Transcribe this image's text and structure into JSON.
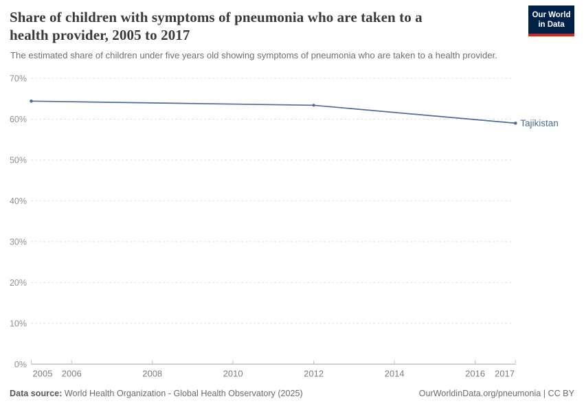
{
  "header": {
    "title_lines": [
      "Share of children with symptoms of pneumonia who are taken to a",
      "health provider, 2005 to 2017"
    ],
    "subtitle": "The estimated share of children under five years old showing symptoms of pneumonia who are taken to a health provider."
  },
  "logo": {
    "line1": "Our World",
    "line2": "in Data",
    "bg_color": "#002147",
    "accent_color": "#cd2a1e"
  },
  "chart_data": {
    "type": "line",
    "title": "Share of children with symptoms of pneumonia who are taken to a health provider, 2005 to 2017",
    "subtitle": "The estimated share of children under five years old showing symptoms of pneumonia who are taken to a health provider.",
    "xlabel": "",
    "ylabel": "",
    "xlim": [
      2005,
      2017
    ],
    "ylim": [
      0,
      70
    ],
    "y_ticks": [
      0,
      10,
      20,
      30,
      40,
      50,
      60,
      70
    ],
    "y_tick_suffix": "%",
    "x_ticks": [
      2005,
      2006,
      2008,
      2010,
      2012,
      2014,
      2016,
      2017
    ],
    "grid": "horizontal-dashed",
    "legend_position": "end-of-line-label",
    "colors": {
      "gridline": "#dcdcdc",
      "axis_line": "#a6a6a6",
      "tick_mark": "#c2c2c2",
      "y_label": "#8f8f8f",
      "x_label": "#7d7d7d"
    },
    "series": [
      {
        "name": "Tajikistan",
        "color": "#4c6a9c",
        "points": [
          {
            "x": 2005,
            "y": 64.4
          },
          {
            "x": 2012,
            "y": 63.4
          },
          {
            "x": 2017,
            "y": 59
          }
        ]
      }
    ]
  },
  "footer": {
    "source_label": "Data source:",
    "source_text": "World Health Organization - Global Health Observatory (2025)",
    "url_license": "OurWorldinData.org/pneumonia | CC BY"
  }
}
